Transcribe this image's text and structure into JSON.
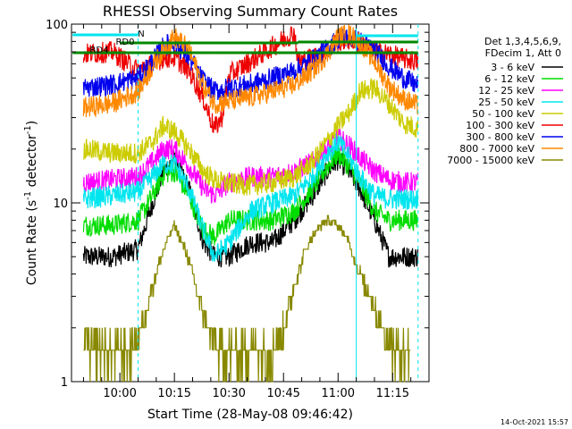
{
  "chart_data": {
    "type": "line",
    "title": "RHESSI Observing Summary Count Rates",
    "xlabel": "Start Time (28-May-08 09:46:42)",
    "ylabel": "Count Rate (s⁻¹ detector⁻¹)",
    "ylabel_main": "Count Rate (s",
    "ylabel_sup1": "-1",
    "ylabel_mid": " detector",
    "ylabel_sup2": "-1",
    "ylabel_end": ")",
    "y_scale": "log",
    "ylim": [
      1,
      100
    ],
    "xlim": [
      "09:46:42",
      "11:25:00"
    ],
    "x_ticks": [
      "10:00",
      "10:15",
      "10:30",
      "10:45",
      "11:00",
      "11:15"
    ],
    "y_ticks": [
      "1",
      "10",
      "100"
    ],
    "legend_position": "right",
    "legend_header": [
      "Det 1,3,4,5,6,9,",
      "FDecim 1, Att 0"
    ],
    "timestamp": "14-Oct-2021 15:57",
    "flags": {
      "labels": [
        "N",
        "RD0",
        "RD4"
      ],
      "N_color": "#00e5ee",
      "RD_color": "#008800"
    },
    "series": [
      {
        "name": "3 - 6 keV",
        "color": "#000000",
        "x": [
          "09:50",
          "09:58",
          "10:05",
          "10:09",
          "10:12",
          "10:15",
          "10:19",
          "10:23",
          "10:26",
          "10:30",
          "10:36",
          "10:42",
          "10:48",
          "10:53",
          "10:57",
          "11:00",
          "11:03",
          "11:06",
          "11:10",
          "11:14",
          "11:18",
          "11:22"
        ],
        "y": [
          5,
          5,
          5.5,
          10,
          15,
          17.5,
          12,
          6,
          5,
          5,
          6,
          6,
          8,
          11,
          15,
          17.5,
          15,
          12,
          8,
          5,
          5,
          5
        ]
      },
      {
        "name": "6 - 12 keV",
        "color": "#00dd00",
        "x": [
          "09:50",
          "09:58",
          "10:05",
          "10:09",
          "10:12",
          "10:15",
          "10:19",
          "10:23",
          "10:26",
          "10:30",
          "10:36",
          "10:42",
          "10:48",
          "10:53",
          "10:57",
          "11:00",
          "11:03",
          "11:06",
          "11:10",
          "11:14",
          "11:18",
          "11:22"
        ],
        "y": [
          7.5,
          7.5,
          8,
          11,
          14.5,
          15,
          11,
          7,
          6.5,
          8,
          8,
          8,
          9,
          12,
          16,
          19,
          16,
          13,
          9,
          8,
          8,
          8
        ]
      },
      {
        "name": "12 - 25 keV",
        "color": "#ff00ff",
        "x": [
          "09:50",
          "09:58",
          "10:05",
          "10:09",
          "10:12",
          "10:15",
          "10:19",
          "10:23",
          "10:26",
          "10:30",
          "10:36",
          "10:42",
          "10:48",
          "10:53",
          "10:57",
          "11:00",
          "11:03",
          "11:06",
          "11:10",
          "11:14",
          "11:18",
          "11:22"
        ],
        "y": [
          13,
          13.5,
          14,
          17,
          20,
          20,
          16,
          12,
          11,
          13,
          14,
          14,
          15,
          17,
          20,
          23,
          21,
          18,
          15,
          13.5,
          13,
          13
        ]
      },
      {
        "name": "25 - 50 keV",
        "color": "#00e5ee",
        "x": [
          "09:50",
          "09:58",
          "10:05",
          "10:09",
          "10:12",
          "10:15",
          "10:19",
          "10:23",
          "10:26",
          "10:30",
          "10:36",
          "10:42",
          "10:48",
          "10:53",
          "10:57",
          "11:00",
          "11:03",
          "11:06",
          "11:10",
          "11:14",
          "11:18",
          "11:22"
        ],
        "y": [
          10.5,
          11,
          11.5,
          14,
          16.5,
          16.5,
          12,
          7,
          5,
          6,
          9,
          10,
          11,
          14,
          19,
          22,
          18,
          14,
          11,
          10.5,
          10.5,
          10.5
        ]
      },
      {
        "name": "50 - 100 keV",
        "color": "#cccc00",
        "x": [
          "09:50",
          "09:58",
          "10:05",
          "10:09",
          "10:12",
          "10:15",
          "10:19",
          "10:23",
          "10:26",
          "10:28",
          "10:36",
          "10:42",
          "10:48",
          "10:53",
          "10:57",
          "11:00",
          "11:03",
          "11:06",
          "11:10",
          "11:14",
          "11:18",
          "11:22"
        ],
        "y": [
          20,
          19,
          19,
          22,
          27,
          25,
          20,
          15,
          13.5,
          13,
          12.5,
          13,
          14,
          17,
          22,
          27,
          32,
          42,
          44,
          36,
          28,
          26
        ]
      },
      {
        "name": "100 - 300 keV",
        "color": "#ee0000",
        "x": [
          "09:50",
          "09:58",
          "10:05",
          "10:09",
          "10:12",
          "10:15",
          "10:19",
          "10:23",
          "10:26",
          "10:28",
          "10:30",
          "10:36",
          "10:42",
          "10:48",
          "10:49",
          "10:53",
          "10:57",
          "11:00",
          "11:03",
          "11:06",
          "11:10",
          "11:14",
          "11:18",
          "11:22"
        ],
        "y": [
          68,
          70,
          55,
          60,
          65,
          65,
          55,
          38,
          26,
          30,
          52,
          62,
          75,
          90,
          62,
          65,
          72,
          80,
          82,
          78,
          70,
          68,
          64,
          62
        ]
      },
      {
        "name": "300 - 800 keV",
        "color": "#0000ee",
        "x": [
          "09:50",
          "09:58",
          "10:05",
          "10:09",
          "10:12",
          "10:15",
          "10:19",
          "10:23",
          "10:26",
          "10:30",
          "10:36",
          "10:42",
          "10:48",
          "10:53",
          "10:57",
          "11:00",
          "11:03",
          "11:06",
          "11:10",
          "11:14",
          "11:18",
          "11:22"
        ],
        "y": [
          44,
          46,
          50,
          62,
          75,
          80,
          65,
          48,
          42,
          44,
          46,
          50,
          55,
          63,
          73,
          83,
          85,
          80,
          72,
          58,
          50,
          45
        ]
      },
      {
        "name": "800 - 7000 keV",
        "color": "#ff8800",
        "x": [
          "09:50",
          "09:58",
          "10:05",
          "10:09",
          "10:12",
          "10:15",
          "10:19",
          "10:23",
          "10:26",
          "10:30",
          "10:36",
          "10:42",
          "10:48",
          "10:53",
          "10:57",
          "11:00",
          "11:03",
          "11:06",
          "11:10",
          "11:14",
          "11:18",
          "11:22"
        ],
        "y": [
          34,
          36,
          42,
          58,
          72,
          85,
          72,
          45,
          36,
          37,
          39,
          42,
          46,
          55,
          68,
          85,
          88,
          80,
          62,
          45,
          38,
          35
        ]
      },
      {
        "name": "7000 - 15000 keV",
        "color": "#888800",
        "x": [
          "09:50",
          "09:58",
          "10:03",
          "10:06",
          "10:09",
          "10:12",
          "10:15",
          "10:18",
          "10:21",
          "10:24",
          "10:27",
          "10:30",
          "10:36",
          "10:42",
          "10:45",
          "10:48",
          "10:51",
          "10:54",
          "10:57",
          "11:00",
          "11:03",
          "11:06",
          "11:09",
          "11:12",
          "11:15",
          "11:20"
        ],
        "y": [
          1.6,
          1.5,
          1.5,
          2,
          3.5,
          5.5,
          7.5,
          5.5,
          3.3,
          2,
          1.5,
          1.5,
          1.5,
          1.5,
          2,
          3.5,
          5.5,
          7,
          8,
          7.5,
          6,
          4,
          3,
          2,
          1.5,
          1.5
        ]
      }
    ]
  }
}
